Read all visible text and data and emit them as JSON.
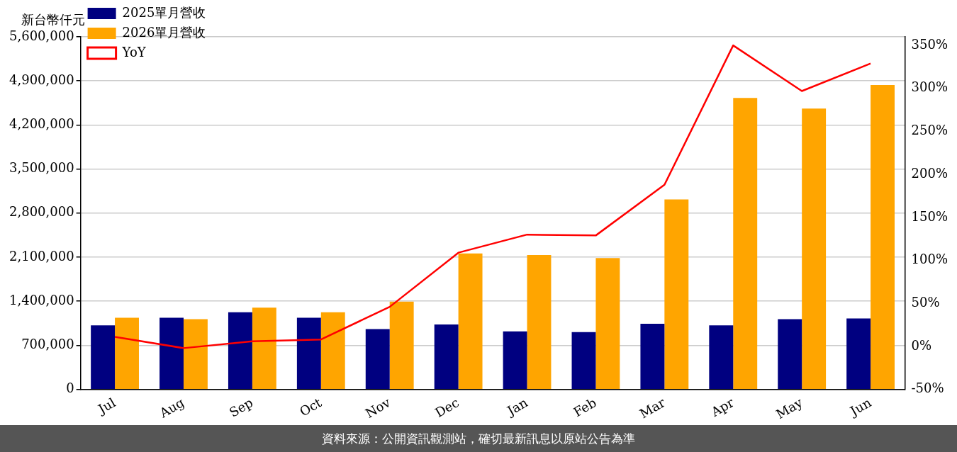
{
  "chart_data": {
    "type": "bar",
    "ylabel": "新台幣仟元",
    "categories": [
      "Jul",
      "Aug",
      "Sep",
      "Oct",
      "Nov",
      "Dec",
      "Jan",
      "Feb",
      "Mar",
      "Apr",
      "May",
      "Jun"
    ],
    "series": [
      {
        "name": "2025單月營收",
        "color": "#000080",
        "values": [
          1018000,
          1139000,
          1224000,
          1139000,
          958000,
          1030000,
          921000,
          909000,
          1042000,
          1018000,
          1115000,
          1127000
        ]
      },
      {
        "name": "2026單月營收",
        "color": "#ffa500",
        "values": [
          1139000,
          1115000,
          1297000,
          1224000,
          1394000,
          2158000,
          2133000,
          2085000,
          3018000,
          4630000,
          4461000,
          4836000
        ]
      },
      {
        "name": "YoY",
        "type": "line",
        "axis": "y2",
        "color": "#ff0000",
        "values": [
          11,
          -2,
          6,
          8,
          46,
          109,
          130,
          129,
          188,
          350,
          297,
          329
        ]
      }
    ],
    "ylim": [
      0,
      5600000
    ],
    "yticks": [
      {
        "value": 0,
        "label": "0"
      },
      {
        "value": 700000,
        "label": "700,000"
      },
      {
        "value": 1400000,
        "label": "1,400,000"
      },
      {
        "value": 2100000,
        "label": "2,100,000"
      },
      {
        "value": 2800000,
        "label": "2,800,000"
      },
      {
        "value": 3500000,
        "label": "3,500,000"
      },
      {
        "value": 4200000,
        "label": "4,200,000"
      },
      {
        "value": 4900000,
        "label": "4,900,000"
      },
      {
        "value": 5600000,
        "label": "5,600,000"
      }
    ],
    "y2lim": [
      -50,
      360
    ],
    "y2ticks": [
      {
        "value": -50,
        "label": "-50%"
      },
      {
        "value": 0,
        "label": "0%"
      },
      {
        "value": 50,
        "label": "50%"
      },
      {
        "value": 100,
        "label": "100%"
      },
      {
        "value": 150,
        "label": "150%"
      },
      {
        "value": 200,
        "label": "200%"
      },
      {
        "value": 250,
        "label": "250%"
      },
      {
        "value": 300,
        "label": "300%"
      },
      {
        "value": 350,
        "label": "350%"
      }
    ],
    "grid": "y",
    "legend": "top left",
    "marker": "none",
    "line_style": "solid",
    "annotations": [
      "資料來源：公開資訊觀測站，確切最新訊息以原站公告為準"
    ]
  }
}
